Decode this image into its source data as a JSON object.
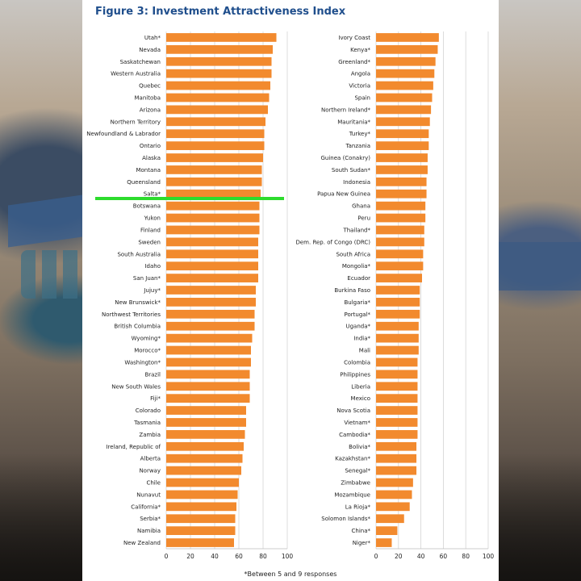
{
  "figure": {
    "title": "Figure 3: Investment Attractiveness Index",
    "footnote": "*Between 5 and 9 responses"
  },
  "chart_data": [
    {
      "type": "bar",
      "orientation": "horizontal",
      "bar_color": "#f28a2e",
      "xlim": [
        0,
        100
      ],
      "xticks": [
        0,
        20,
        40,
        60,
        80,
        100
      ],
      "grid": true,
      "categories": [
        "Utah*",
        "Nevada",
        "Saskatchewan",
        "Western Australia",
        "Quebec",
        "Manitoba",
        "Arizona",
        "Northern Territory",
        "Newfoundland & Labrador",
        "Ontario",
        "Alaska",
        "Montana",
        "Queensland",
        "Salta*",
        "Botswana",
        "Yukon",
        "Finland",
        "Sweden",
        "South Australia",
        "Idaho",
        "San Juan*",
        "Jujuy*",
        "New Brunswick*",
        "Northwest Territories",
        "British Columbia",
        "Wyoming*",
        "Morocco*",
        "Washington*",
        "Brazil",
        "New South Wales",
        "Fiji*",
        "Colorado",
        "Tasmania",
        "Zambia",
        "Ireland, Republic of",
        "Alberta",
        "Norway",
        "Chile",
        "Nunavut",
        "California*",
        "Serbia*",
        "Namibia",
        "New Zealand"
      ],
      "values": [
        91,
        88,
        87,
        87,
        86,
        85,
        84,
        82,
        81,
        81,
        80,
        79,
        79,
        78,
        77,
        77,
        77,
        76,
        76,
        76,
        76,
        74,
        74,
        73,
        73,
        71,
        70,
        70,
        69,
        69,
        69,
        66,
        66,
        65,
        64,
        63,
        62,
        60,
        59,
        58,
        57,
        57,
        56
      ]
    },
    {
      "type": "bar",
      "orientation": "horizontal",
      "bar_color": "#f28a2e",
      "xlim": [
        0,
        100
      ],
      "xticks": [
        0,
        20,
        40,
        60,
        80,
        100
      ],
      "grid": true,
      "categories": [
        "Ivory Coast",
        "Kenya*",
        "Greenland*",
        "Angola",
        "Victoria",
        "Spain",
        "Northern Ireland*",
        "Mauritania*",
        "Turkey*",
        "Tanzania",
        "Guinea (Conakry)",
        "South Sudan*",
        "Indonesia",
        "Papua New Guinea",
        "Ghana",
        "Peru",
        "Thailand*",
        "Dem. Rep. of Congo (DRC)",
        "South Africa",
        "Mongolia*",
        "Ecuador",
        "Burkina Faso",
        "Bulgaria*",
        "Portugal*",
        "Uganda*",
        "India*",
        "Mali",
        "Colombia",
        "Philippines",
        "Liberia",
        "Mexico",
        "Nova Scotia",
        "Vietnam*",
        "Cambodia*",
        "Bolivia*",
        "Kazakhstan*",
        "Senegal*",
        "Zimbabwe",
        "Mozambique",
        "La Rioja*",
        "Solomon Islands*",
        "China*",
        "Niger*"
      ],
      "values": [
        56,
        55,
        53,
        52,
        51,
        50,
        49,
        48,
        47,
        47,
        46,
        46,
        45,
        45,
        44,
        44,
        43,
        43,
        42,
        42,
        41,
        39,
        39,
        39,
        38,
        38,
        38,
        37,
        37,
        37,
        37,
        37,
        37,
        37,
        36,
        36,
        36,
        33,
        32,
        30,
        25,
        19,
        14
      ]
    }
  ]
}
